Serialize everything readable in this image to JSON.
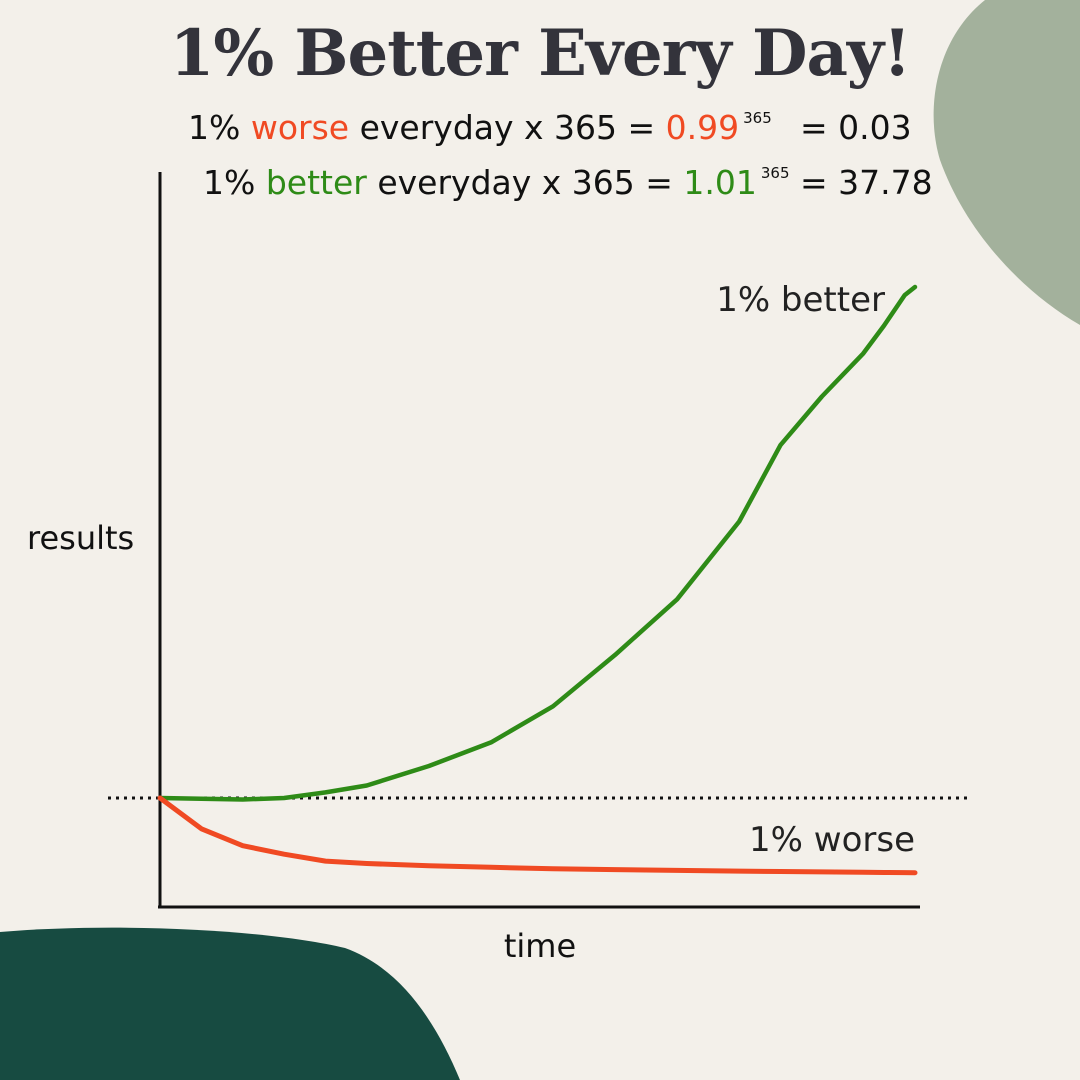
{
  "title": "1% Better Every Day!",
  "formulas": {
    "worse": {
      "prefix": "1% ",
      "word": "worse",
      "middle": " everyday x 365 = ",
      "base": "0.99",
      "exponent": "365",
      "result": "= 0.03"
    },
    "better": {
      "prefix": "1% ",
      "word": "better",
      "middle": " everyday x 365 = ",
      "base": "1.01",
      "exponent": "365",
      "result": "= 37.78"
    }
  },
  "colors": {
    "background": "#f3f0ea",
    "better": "#2e8b17",
    "worse": "#f04a23",
    "blob_top_right": "#a3b19c",
    "blob_bottom_left": "#174b41"
  },
  "chart_data": {
    "type": "line",
    "xlabel": "time",
    "ylabel": "results",
    "baseline": 1.0,
    "baseline_style": "dotted",
    "xlim": [
      0,
      365
    ],
    "ylim": [
      0,
      38
    ],
    "x": [
      0,
      20,
      40,
      60,
      80,
      100,
      130,
      160,
      190,
      220,
      250,
      280,
      300,
      320,
      340,
      350,
      360,
      365
    ],
    "series": [
      {
        "name": "1% better",
        "values": [
          1.0,
          0.99,
          0.98,
          1.0,
          1.4,
          1.9,
          3.3,
          5.0,
          7.6,
          11.3,
          15.3,
          20.9,
          26.4,
          29.9,
          33.0,
          35.0,
          37.2,
          37.78
        ]
      },
      {
        "name": "1% worse",
        "values": [
          1.0,
          0.6,
          0.38,
          0.27,
          0.18,
          0.15,
          0.12,
          0.1,
          0.08,
          0.07,
          0.06,
          0.05,
          0.045,
          0.04,
          0.035,
          0.033,
          0.031,
          0.03
        ]
      }
    ]
  }
}
